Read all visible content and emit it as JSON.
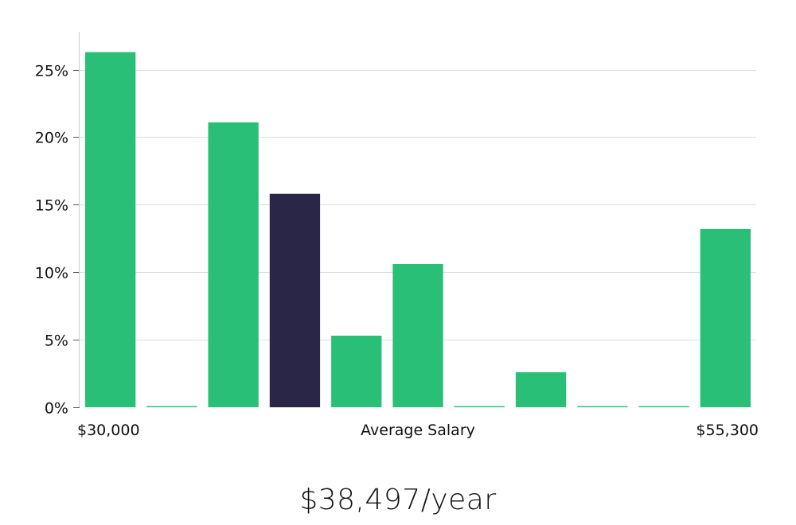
{
  "chart_data": {
    "type": "bar",
    "categories": [
      "1",
      "2",
      "3",
      "4",
      "5",
      "6",
      "7",
      "8",
      "9",
      "10",
      "11"
    ],
    "values": [
      26.3,
      0,
      21.1,
      15.8,
      5.3,
      10.6,
      0,
      2.6,
      0,
      0,
      13.2
    ],
    "highlight_index": 3,
    "y_ticks": [
      "0%",
      "5%",
      "10%",
      "15%",
      "20%",
      "25%"
    ],
    "y_tick_values": [
      0,
      5,
      10,
      15,
      20,
      25
    ],
    "ylim": [
      0,
      27.8
    ],
    "x_min_label": "$30,000",
    "x_max_label": "$55,300",
    "xlabel": "Average Salary",
    "grid": true,
    "colors": {
      "bar": "#2abf77",
      "highlight": "#2a2647",
      "grid": "#dddddd",
      "axis": "#cccccc"
    }
  },
  "summary": {
    "salary": "$38,497/year"
  }
}
